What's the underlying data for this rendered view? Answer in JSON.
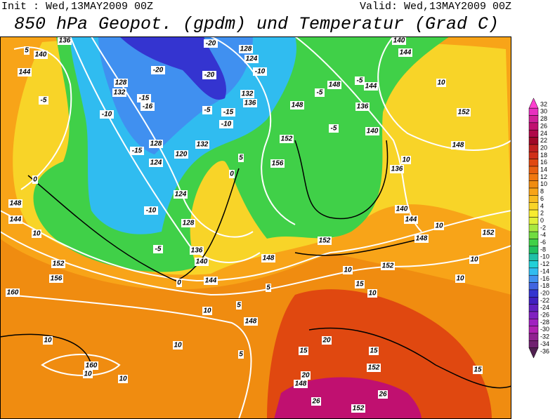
{
  "header": {
    "init": "Init : Wed,13MAY2009 00Z",
    "valid": "Valid: Wed,13MAY2009 00Z",
    "title": "850 hPa Geopot. (gpdm) und Temperatur (Grad C)"
  },
  "colorbar": {
    "values": [
      32,
      30,
      28,
      26,
      24,
      22,
      20,
      18,
      16,
      14,
      12,
      10,
      8,
      6,
      4,
      2,
      0,
      -2,
      -4,
      -6,
      -8,
      -10,
      -12,
      -14,
      -16,
      -18,
      -20,
      -22,
      -24,
      -26,
      -28,
      -30,
      -32,
      -34,
      -36
    ],
    "colors": [
      "#ff40d0",
      "#e830c0",
      "#d02098",
      "#c01070",
      "#b00848",
      "#a00828",
      "#c02020",
      "#d03018",
      "#e04810",
      "#e86010",
      "#f07810",
      "#f08c10",
      "#f8a418",
      "#f8bc20",
      "#f8d428",
      "#f8ec30",
      "#e0f038",
      "#a8e840",
      "#70dc40",
      "#40d048",
      "#20c060",
      "#20c0a8",
      "#20d0d8",
      "#30bcf0",
      "#4090f0",
      "#4064e0",
      "#3434d0",
      "#4020c0",
      "#6020c0",
      "#8020c0",
      "#a020c0",
      "#b020b0",
      "#902090",
      "#702070",
      "#502050"
    ]
  },
  "map_labels": [
    "136",
    "140",
    "144",
    "5",
    "-5",
    "132",
    "128",
    "-10",
    "-15",
    "128",
    "124",
    "120",
    "132",
    "-20",
    "128",
    "124",
    "-10",
    "-20",
    "-20",
    "132",
    "136",
    "-15",
    "-10",
    "-5",
    "152",
    "156",
    "0",
    "5",
    "148",
    "-5",
    "-5",
    "136",
    "140",
    "148",
    "144",
    "-5",
    "144",
    "140",
    "10",
    "152",
    "148",
    "10",
    "136",
    "140",
    "144",
    "148",
    "152",
    "10",
    "10",
    "10",
    "152",
    "15",
    "15",
    "15",
    "20",
    "20",
    "148",
    "152",
    "152",
    "26",
    "26",
    "148",
    "152",
    "10",
    "15",
    "10",
    "5",
    "148",
    "5",
    "5",
    "10",
    "10",
    "10",
    "10",
    "10",
    "160",
    "160",
    "156",
    "152",
    "148",
    "144",
    "10",
    "0",
    "-5",
    "-10",
    "124",
    "128",
    "136",
    "140",
    "144",
    "0",
    "-15",
    "-16"
  ]
}
